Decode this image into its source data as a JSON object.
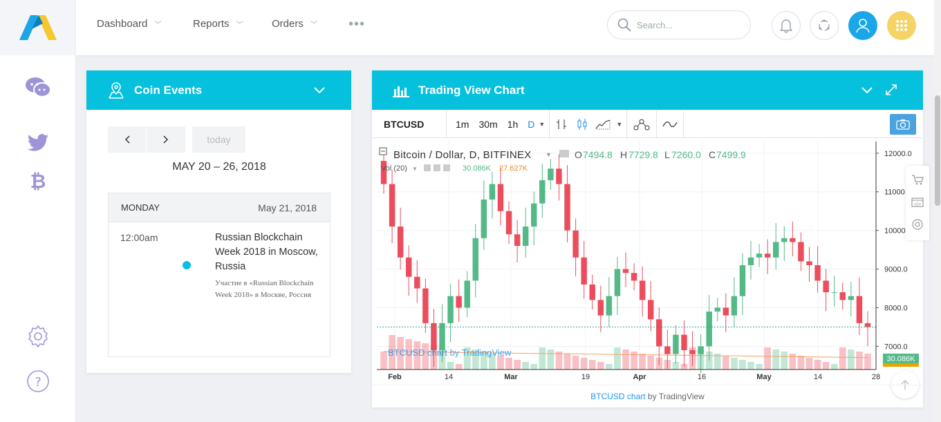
{
  "header": {
    "nav": [
      {
        "label": "Dashboard"
      },
      {
        "label": "Reports"
      },
      {
        "label": "Orders"
      }
    ],
    "more_label": "•••",
    "search_placeholder": "Search..."
  },
  "coin_events": {
    "title": "Coin Events",
    "today_label": "today",
    "date_range": "MAY 20 – 26, 2018",
    "day_name": "MONDAY",
    "day_date": "May 21, 2018",
    "event": {
      "time": "12:00am",
      "title": "Russian Blockchain Week 2018 in Moscow, Russia",
      "description": "Участие в «Russian Blockchain Week 2018» в Москве, Россия"
    }
  },
  "trading": {
    "title": "Trading View Chart",
    "symbol": "BTCUSD",
    "intervals": [
      "1m",
      "30m",
      "1h",
      "D"
    ],
    "legend_title": "Bitcoin / Dollar, D, BITFINEX",
    "o_label": "O",
    "o_value": "7494.8",
    "h_label": "H",
    "h_value": "7729.8",
    "l_label": "L",
    "l_value": "7260.0",
    "c_label": "C",
    "c_value": "7499.9",
    "vol_label": "Vol (20)",
    "vol_value1": "30.086K",
    "vol_value2": "27.627K",
    "watermark": "BTCUSD chart by TradingView",
    "price_ticks": [
      "12000.0",
      "11000.0",
      "10000.0",
      "9000.0",
      "8000.0",
      "7000.0"
    ],
    "volume_badge": "30.086K",
    "date_ticks": [
      "Feb",
      "14",
      "Mar",
      "19",
      "Apr",
      "16",
      "May",
      "14",
      "28"
    ],
    "footer_link": "BTCUSD chart",
    "footer_suffix": " by TradingView"
  },
  "colors": {
    "accent": "#05c1de",
    "up": "#53b987",
    "down": "#eb4d5c",
    "avatar_blue": "#1aa6e8",
    "apps_yellow": "#f5d365",
    "icon_purple": "#9e95d8"
  },
  "chart_data": {
    "type": "candlestick",
    "symbol": "BTCUSD",
    "interval": "D",
    "exchange": "BITFINEX",
    "y_range": [
      6400,
      12300
    ],
    "x_ticks": [
      "Feb",
      "14",
      "Mar",
      "19",
      "Apr",
      "16",
      "May",
      "14",
      "28"
    ],
    "closes_approx": [
      11200,
      10100,
      9300,
      8800,
      8500,
      7600,
      6900,
      7600,
      8300,
      8000,
      8700,
      9800,
      10800,
      11200,
      10500,
      9900,
      9600,
      10100,
      10700,
      11300,
      11600,
      11200,
      10000,
      9300,
      8600,
      8200,
      7800,
      8300,
      9000,
      8900,
      8700,
      8200,
      7700,
      7000,
      6800,
      7300,
      6900,
      6800,
      7000,
      7900,
      8000,
      7800,
      8300,
      9100,
      9300,
      9400,
      9300,
      9700,
      9800,
      9700,
      9200,
      9100,
      8700,
      8400,
      8400,
      8200,
      8300,
      7600,
      7500
    ],
    "last_close": 7499.9,
    "volume_last": "30.086K"
  }
}
